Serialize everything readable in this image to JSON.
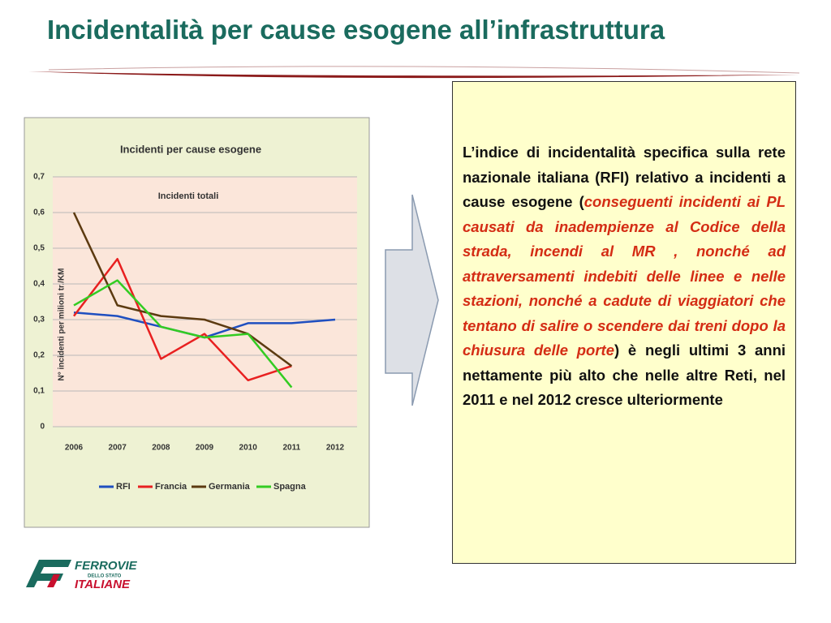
{
  "title": "Incidentalità per cause esogene all’infrastruttura",
  "chart_data": {
    "type": "line",
    "title": "Incidenti per cause  esogene",
    "subtitle": "Incidenti totali",
    "y_label": "N° incidenti  per milioni tr./KM",
    "categories": [
      "2006",
      "2007",
      "2008",
      "2009",
      "2010",
      "2011",
      "2012"
    ],
    "series": [
      {
        "name": "RFI",
        "color": "#1f4fc0",
        "values": [
          0.32,
          0.31,
          0.28,
          0.25,
          0.29,
          0.29,
          0.3
        ]
      },
      {
        "name": "Francia",
        "color": "#e82020",
        "values": [
          0.31,
          0.47,
          0.19,
          0.26,
          0.13,
          0.17,
          null
        ]
      },
      {
        "name": "Germania",
        "color": "#5c3a10",
        "values": [
          0.6,
          0.34,
          0.31,
          0.3,
          0.26,
          0.17,
          null
        ]
      },
      {
        "name": "Spagna",
        "color": "#33cc22",
        "values": [
          0.34,
          0.41,
          0.28,
          0.25,
          0.26,
          0.11,
          null
        ]
      }
    ],
    "ylim": [
      0,
      0.7
    ],
    "yticks": [
      0,
      {
        "value": 0.1,
        "label": "0,1"
      },
      {
        "value": 0.2,
        "label": "0,2"
      },
      {
        "value": 0.3,
        "label": "0,3"
      },
      {
        "value": 0.4,
        "label": "0,4"
      },
      {
        "value": 0.5,
        "label": "0,5"
      },
      {
        "value": 0.6,
        "label": "0,6"
      },
      {
        "value": 0.7,
        "label": "0,7"
      }
    ],
    "grid": true,
    "legend": "bottom"
  },
  "textbox": {
    "parts": [
      "L’indice di incidentalità specifica sulla rete nazionale italiana (RFI) relativo a incidenti a cause esogene (",
      "conseguenti incidenti ai PL causati da inadempienze al Codice della strada, incendi al MR , nonché ad attraversamenti indebiti delle linee e nelle stazioni, nonché a cadute di viaggiatori che tentano di salire o scendere dai treni dopo la chiusura delle porte",
      ") è negli ultimi 3 anni nettamente più alto che nelle altre Reti, nel 2011 e nel 2012 cresce ulteriormente"
    ]
  },
  "logo": {
    "line1": "FERROVIE",
    "line2": "DELLO STATO",
    "line3": "ITALIANE"
  }
}
